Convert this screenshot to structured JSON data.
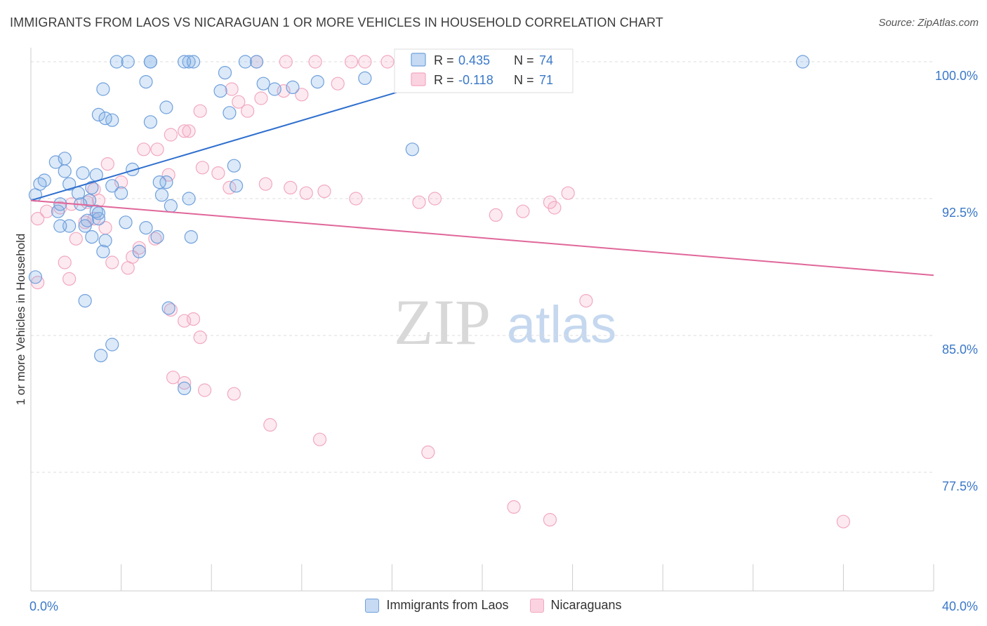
{
  "title": "IMMIGRANTS FROM LAOS VS NICARAGUAN 1 OR MORE VEHICLES IN HOUSEHOLD CORRELATION CHART",
  "source": "Source: ZipAtlas.com",
  "watermark": {
    "zip": "ZIP",
    "atlas": "atlas"
  },
  "legend_stats": [
    {
      "r_label": "R =",
      "r_value": "0.435",
      "n_label": "N =",
      "n_value": "74"
    },
    {
      "r_label": "R =",
      "r_value": "-0.118",
      "n_label": "N =",
      "n_value": "71"
    }
  ],
  "chart_data": {
    "type": "scatter",
    "title": "IMMIGRANTS FROM LAOS VS NICARAGUAN 1 OR MORE VEHICLES IN HOUSEHOLD CORRELATION CHART",
    "xlabel": "",
    "ylabel": "1 or more Vehicles in Household",
    "xlim": [
      0,
      40
    ],
    "ylim": [
      71,
      101
    ],
    "x_ticks": [
      0,
      4,
      8,
      12,
      16,
      20,
      24,
      28,
      32,
      36,
      40
    ],
    "x_tick_labels": [
      "0.0%",
      "",
      "",
      "",
      "",
      "",
      "",
      "",
      "",
      "",
      "40.0%"
    ],
    "y_ticks": [
      77.5,
      85,
      92.5,
      100
    ],
    "y_tick_labels": [
      "77.5%",
      "85.0%",
      "92.5%",
      "100.0%"
    ],
    "grid": true,
    "legend_position": "top-center",
    "colors": {
      "laos": "#6fa0dc",
      "nicaraguan": "#f2a8c0",
      "laos_line": "#2e6fce",
      "nicaraguan_line": "#e0679a",
      "tick_text": "#3a78c8"
    },
    "series": [
      {
        "name": "Immigrants from Laos",
        "x": [
          3.8,
          4.3,
          5.3,
          7.0,
          6.8,
          5.3,
          7.2,
          9.5,
          10.0,
          8.6,
          10.3,
          14.8,
          17.4,
          20.6,
          34.2,
          5.1,
          5.3,
          6.0,
          8.8,
          8.4,
          10.8,
          12.7,
          11.6,
          3.2,
          3.0,
          3.6,
          3.3,
          1.1,
          1.5,
          2.3,
          0.6,
          1.5,
          0.4,
          0.2,
          1.7,
          2.9,
          2.6,
          2.1,
          2.2,
          1.2,
          4.5,
          3.6,
          4.0,
          5.8,
          6.0,
          5.7,
          7.0,
          9.1,
          3.0,
          2.5,
          2.4,
          2.9,
          3.0,
          4.2,
          5.1,
          5.6,
          1.7,
          1.3,
          3.2,
          2.7,
          1.3,
          0.2,
          6.1,
          2.4,
          3.1,
          3.6,
          4.8,
          3.3,
          9.0,
          16.9,
          2.7,
          6.2,
          6.8,
          7.1
        ],
        "y": [
          100.0,
          100.0,
          100.0,
          100.0,
          100.0,
          100.0,
          100.0,
          100.0,
          100.0,
          99.4,
          98.8,
          99.1,
          100.0,
          100.0,
          100.0,
          98.9,
          96.7,
          97.5,
          97.2,
          98.4,
          98.5,
          98.9,
          98.6,
          98.5,
          97.1,
          96.8,
          96.9,
          94.5,
          94.7,
          93.9,
          93.5,
          94.0,
          93.3,
          92.7,
          93.3,
          93.8,
          92.4,
          92.8,
          92.2,
          91.8,
          94.1,
          93.2,
          92.8,
          92.7,
          93.4,
          93.4,
          92.5,
          93.2,
          91.4,
          91.3,
          91.0,
          91.8,
          91.7,
          91.2,
          90.9,
          90.4,
          91.0,
          91.0,
          89.6,
          90.4,
          92.2,
          88.2,
          86.5,
          86.9,
          83.9,
          84.5,
          89.6,
          90.2,
          94.3,
          95.2,
          93.1,
          92.1,
          82.1,
          90.4
        ]
      },
      {
        "name": "Nicaraguans",
        "x": [
          10.0,
          11.3,
          12.6,
          14.2,
          14.8,
          15.8,
          12.0,
          13.6,
          11.2,
          10.2,
          9.2,
          8.9,
          9.6,
          7.5,
          7.0,
          6.8,
          6.2,
          5.6,
          5.0,
          3.4,
          2.8,
          4.0,
          6.1,
          7.6,
          8.3,
          8.8,
          10.4,
          11.5,
          12.2,
          13.0,
          14.4,
          17.2,
          17.9,
          23.2,
          20.6,
          23.8,
          23.0,
          21.8,
          3.0,
          2.5,
          1.8,
          1.3,
          0.7,
          0.3,
          0.3,
          1.7,
          1.5,
          2.0,
          2.4,
          2.8,
          3.3,
          3.6,
          4.5,
          4.8,
          5.5,
          6.2,
          6.8,
          7.2,
          7.5,
          7.7,
          6.8,
          6.3,
          9.0,
          10.6,
          12.8,
          17.6,
          21.4,
          23.0,
          36.0,
          24.6,
          4.3
        ],
        "y": [
          100.0,
          100.0,
          100.0,
          100.0,
          100.0,
          100.0,
          98.2,
          98.8,
          98.4,
          98.0,
          97.8,
          98.5,
          97.3,
          97.3,
          96.2,
          96.2,
          96.0,
          95.2,
          95.2,
          94.4,
          93.0,
          93.4,
          93.8,
          94.2,
          93.9,
          93.1,
          93.3,
          93.1,
          92.8,
          92.9,
          92.5,
          92.3,
          92.5,
          92.0,
          91.6,
          92.8,
          92.3,
          91.8,
          92.4,
          92.3,
          92.2,
          92.0,
          91.8,
          91.4,
          87.9,
          88.1,
          89.0,
          90.3,
          91.2,
          91.4,
          90.9,
          89.0,
          89.3,
          89.8,
          90.3,
          86.4,
          85.8,
          85.9,
          84.9,
          82.0,
          82.4,
          82.7,
          81.8,
          80.1,
          79.3,
          78.6,
          75.6,
          74.9,
          74.8,
          86.9,
          88.7
        ]
      }
    ],
    "trend_lines": [
      {
        "name": "Immigrants from Laos",
        "x": [
          0,
          20.8
        ],
        "y": [
          92.4,
          100.0
        ]
      },
      {
        "name": "Nicaraguans",
        "x": [
          0,
          40
        ],
        "y": [
          92.4,
          88.3
        ]
      }
    ]
  },
  "bottom_legend": [
    {
      "label": "Immigrants from Laos"
    },
    {
      "label": "Nicaraguans"
    }
  ]
}
